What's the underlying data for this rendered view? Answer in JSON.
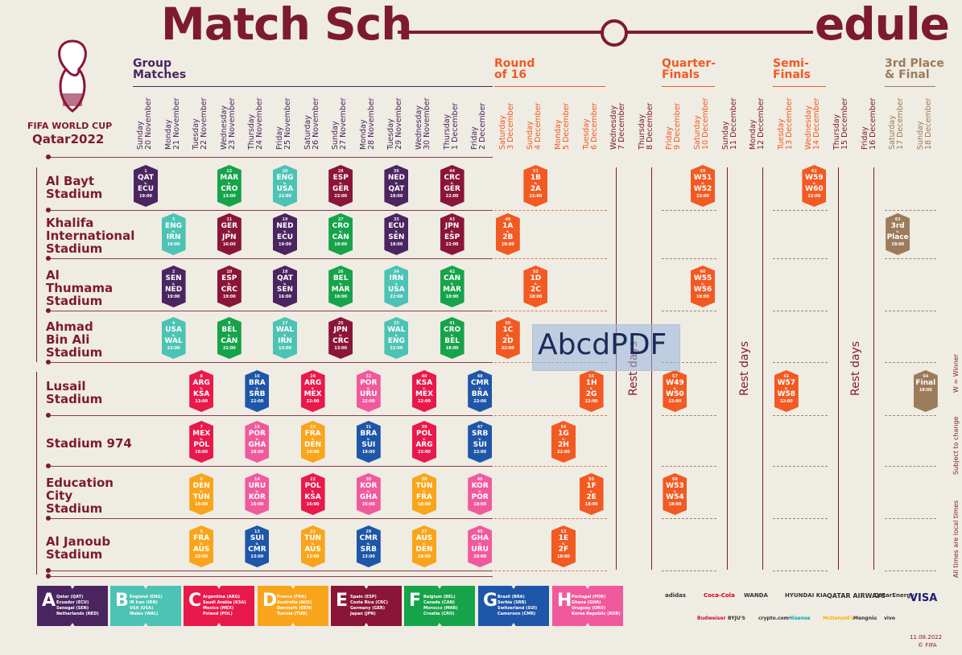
{
  "title": {
    "left": "Match Sch",
    "right": "edule"
  },
  "logo": {
    "line1": "FIFA WORLD CUP",
    "line2": "Qatar2022"
  },
  "stages": [
    {
      "id": "group",
      "label": "Group\nMatches",
      "color": "#4a2560"
    },
    {
      "id": "r16",
      "label": "Round\nof 16",
      "color": "#f15a22"
    },
    {
      "id": "qf",
      "label": "Quarter-\nFinals",
      "color": "#f15a22"
    },
    {
      "id": "sf",
      "label": "Semi-\nFinals",
      "color": "#f15a22"
    },
    {
      "id": "final",
      "label": "3rd Place\n& Final",
      "color": "#9c7b5a"
    }
  ],
  "dates": [
    {
      "d": "Sunday\n20 November",
      "c": "#4a2560"
    },
    {
      "d": "Monday\n21 November",
      "c": "#4a2560"
    },
    {
      "d": "Tuesday\n22 November",
      "c": "#4a2560"
    },
    {
      "d": "Wednesday\n23 November",
      "c": "#4a2560"
    },
    {
      "d": "Thursday\n24 November",
      "c": "#4a2560"
    },
    {
      "d": "Friday\n25 November",
      "c": "#4a2560"
    },
    {
      "d": "Saturday\n26 November",
      "c": "#4a2560"
    },
    {
      "d": "Sunday\n27 November",
      "c": "#4a2560"
    },
    {
      "d": "Monday\n28 November",
      "c": "#4a2560"
    },
    {
      "d": "Tuesday\n29 November",
      "c": "#4a2560"
    },
    {
      "d": "Wednesday\n30 November",
      "c": "#4a2560"
    },
    {
      "d": "Thursday\n1 December",
      "c": "#4a2560"
    },
    {
      "d": "Friday\n2 December",
      "c": "#4a2560"
    },
    {
      "d": "Saturday\n3 December",
      "c": "#f15a22"
    },
    {
      "d": "Sunday\n4 December",
      "c": "#f15a22"
    },
    {
      "d": "Monday\n5 December",
      "c": "#f15a22"
    },
    {
      "d": "Tuesday\n6 December",
      "c": "#f15a22"
    },
    {
      "d": "Wednesday\n7 December",
      "c": "#7d1a32"
    },
    {
      "d": "Thursday\n8 December",
      "c": "#7d1a32"
    },
    {
      "d": "Friday\n9 December",
      "c": "#f15a22"
    },
    {
      "d": "Saturday\n10 December",
      "c": "#f15a22"
    },
    {
      "d": "Sunday\n11 December",
      "c": "#7d1a32"
    },
    {
      "d": "Monday\n12 December",
      "c": "#7d1a32"
    },
    {
      "d": "Tuesday\n13 December",
      "c": "#f15a22"
    },
    {
      "d": "Wednesday\n14 December",
      "c": "#f15a22"
    },
    {
      "d": "Thursday\n15 December",
      "c": "#7d1a32"
    },
    {
      "d": "Friday\n16 December",
      "c": "#7d1a32"
    },
    {
      "d": "Saturday\n17 December",
      "c": "#9c7b5a"
    },
    {
      "d": "Sunday\n18 December",
      "c": "#9c7b5a"
    }
  ],
  "venues": [
    "Al Bayt\nStadium",
    "Khalifa\nInternational\nStadium",
    "Al\nThumama\nStadium",
    "Ahmad\nBin Ali\nStadium",
    "Lusail\nStadium",
    "Stadium 974",
    "Education\nCity\nStadium",
    "Al Janoub\nStadium"
  ],
  "colors": {
    "A": "#4a2560",
    "B": "#4cc3b4",
    "C": "#e8194b",
    "D": "#f9a51b",
    "E": "#8a1538",
    "F": "#16a34a",
    "G": "#1e56a8",
    "H": "#f05a9c",
    "KO": "#f15a22",
    "F3": "#9c7b5a"
  },
  "matches": [
    {
      "n": "1",
      "a": "QAT",
      "b": "ECU",
      "t": "19:00",
      "day": 0,
      "v": 0,
      "g": "A"
    },
    {
      "n": "12",
      "a": "MAR",
      "b": "CRO",
      "t": "13:00",
      "day": 3,
      "v": 0,
      "g": "F"
    },
    {
      "n": "20",
      "a": "ENG",
      "b": "USA",
      "t": "22:00",
      "day": 5,
      "v": 0,
      "g": "B"
    },
    {
      "n": "28",
      "a": "ESP",
      "b": "GER",
      "t": "22:00",
      "day": 7,
      "v": 0,
      "g": "E"
    },
    {
      "n": "36",
      "a": "NED",
      "b": "QAT",
      "t": "18:00",
      "day": 9,
      "v": 0,
      "g": "A"
    },
    {
      "n": "44",
      "a": "CRC",
      "b": "GER",
      "t": "22:00",
      "day": 11,
      "v": 0,
      "g": "E"
    },
    {
      "n": "51",
      "a": "1B",
      "b": "2A",
      "t": "22:00",
      "day": 14,
      "v": 0,
      "g": "KO"
    },
    {
      "n": "59",
      "a": "W51",
      "b": "W52",
      "t": "22:00",
      "day": 20,
      "v": 0,
      "g": "KO"
    },
    {
      "n": "62",
      "a": "W59",
      "b": "W60",
      "t": "22:00",
      "day": 24,
      "v": 0,
      "g": "KO"
    },
    {
      "n": "3",
      "a": "ENG",
      "b": "IRN",
      "t": "16:00",
      "day": 1,
      "v": 1,
      "g": "B"
    },
    {
      "n": "11",
      "a": "GER",
      "b": "JPN",
      "t": "16:00",
      "day": 3,
      "v": 1,
      "g": "E"
    },
    {
      "n": "19",
      "a": "NED",
      "b": "ECU",
      "t": "19:00",
      "day": 5,
      "v": 1,
      "g": "A"
    },
    {
      "n": "27",
      "a": "CRO",
      "b": "CAN",
      "t": "19:00",
      "day": 7,
      "v": 1,
      "g": "F"
    },
    {
      "n": "35",
      "a": "ECU",
      "b": "SEN",
      "t": "18:00",
      "day": 9,
      "v": 1,
      "g": "A"
    },
    {
      "n": "43",
      "a": "JPN",
      "b": "ESP",
      "t": "22:00",
      "day": 11,
      "v": 1,
      "g": "E"
    },
    {
      "n": "49",
      "a": "1A",
      "b": "2B",
      "t": "18:00",
      "day": 13,
      "v": 1,
      "g": "KO"
    },
    {
      "n": "63",
      "a": "3rd",
      "b": "Place",
      "t": "18:00",
      "day": 27,
      "v": 1,
      "g": "F3"
    },
    {
      "n": "2",
      "a": "SEN",
      "b": "NED",
      "t": "19:00",
      "day": 1,
      "v": 2,
      "g": "A"
    },
    {
      "n": "10",
      "a": "ESP",
      "b": "CRC",
      "t": "19:00",
      "day": 3,
      "v": 2,
      "g": "E"
    },
    {
      "n": "18",
      "a": "QAT",
      "b": "SEN",
      "t": "16:00",
      "day": 5,
      "v": 2,
      "g": "A"
    },
    {
      "n": "26",
      "a": "BEL",
      "b": "MAR",
      "t": "16:00",
      "day": 7,
      "v": 2,
      "g": "F"
    },
    {
      "n": "34",
      "a": "IRN",
      "b": "USA",
      "t": "22:00",
      "day": 9,
      "v": 2,
      "g": "B"
    },
    {
      "n": "42",
      "a": "CAN",
      "b": "MAR",
      "t": "18:00",
      "day": 11,
      "v": 2,
      "g": "F"
    },
    {
      "n": "52",
      "a": "1D",
      "b": "2C",
      "t": "18:00",
      "day": 14,
      "v": 2,
      "g": "KO"
    },
    {
      "n": "60",
      "a": "W55",
      "b": "W56",
      "t": "18:00",
      "day": 20,
      "v": 2,
      "g": "KO"
    },
    {
      "n": "4",
      "a": "USA",
      "b": "WAL",
      "t": "22:00",
      "day": 1,
      "v": 3,
      "g": "B"
    },
    {
      "n": "9",
      "a": "BEL",
      "b": "CAN",
      "t": "22:00",
      "day": 3,
      "v": 3,
      "g": "F"
    },
    {
      "n": "17",
      "a": "WAL",
      "b": "IRN",
      "t": "13:00",
      "day": 5,
      "v": 3,
      "g": "B"
    },
    {
      "n": "25",
      "a": "JPN",
      "b": "CRC",
      "t": "13:00",
      "day": 7,
      "v": 3,
      "g": "E"
    },
    {
      "n": "33",
      "a": "WAL",
      "b": "ENG",
      "t": "22:00",
      "day": 9,
      "v": 3,
      "g": "B"
    },
    {
      "n": "41",
      "a": "CRO",
      "b": "BEL",
      "t": "18:00",
      "day": 11,
      "v": 3,
      "g": "F"
    },
    {
      "n": "50",
      "a": "1C",
      "b": "2D",
      "t": "22:00",
      "day": 13,
      "v": 3,
      "g": "KO"
    },
    {
      "n": "8",
      "a": "ARG",
      "b": "KSA",
      "t": "13:00",
      "day": 2,
      "v": 4,
      "g": "C"
    },
    {
      "n": "16",
      "a": "BRA",
      "b": "SRB",
      "t": "22:00",
      "day": 4,
      "v": 4,
      "g": "G"
    },
    {
      "n": "24",
      "a": "ARG",
      "b": "MEX",
      "t": "22:00",
      "day": 6,
      "v": 4,
      "g": "C"
    },
    {
      "n": "32",
      "a": "POR",
      "b": "URU",
      "t": "22:00",
      "day": 8,
      "v": 4,
      "g": "H"
    },
    {
      "n": "40",
      "a": "KSA",
      "b": "MEX",
      "t": "22:00",
      "day": 10,
      "v": 4,
      "g": "C"
    },
    {
      "n": "48",
      "a": "CMR",
      "b": "BRA",
      "t": "22:00",
      "day": 12,
      "v": 4,
      "g": "G"
    },
    {
      "n": "56",
      "a": "1H",
      "b": "2G",
      "t": "22:00",
      "day": 16,
      "v": 4,
      "g": "KO"
    },
    {
      "n": "57",
      "a": "W49",
      "b": "W50",
      "t": "22:00",
      "day": 19,
      "v": 4,
      "g": "KO"
    },
    {
      "n": "61",
      "a": "W57",
      "b": "W58",
      "t": "22:00",
      "day": 23,
      "v": 4,
      "g": "KO"
    },
    {
      "n": "64",
      "a": "Final",
      "b": "",
      "t": "18:00",
      "day": 28,
      "v": 4,
      "g": "F3"
    },
    {
      "n": "7",
      "a": "MEX",
      "b": "POL",
      "t": "19:00",
      "day": 2,
      "v": 5,
      "g": "C"
    },
    {
      "n": "15",
      "a": "POR",
      "b": "GHA",
      "t": "19:00",
      "day": 4,
      "v": 5,
      "g": "H"
    },
    {
      "n": "23",
      "a": "FRA",
      "b": "DEN",
      "t": "19:00",
      "day": 6,
      "v": 5,
      "g": "D"
    },
    {
      "n": "31",
      "a": "BRA",
      "b": "SUI",
      "t": "19:00",
      "day": 8,
      "v": 5,
      "g": "G"
    },
    {
      "n": "39",
      "a": "POL",
      "b": "ARG",
      "t": "22:00",
      "day": 10,
      "v": 5,
      "g": "C"
    },
    {
      "n": "47",
      "a": "SRB",
      "b": "SUI",
      "t": "22:00",
      "day": 12,
      "v": 5,
      "g": "G"
    },
    {
      "n": "54",
      "a": "1G",
      "b": "2H",
      "t": "22:00",
      "day": 15,
      "v": 5,
      "g": "KO"
    },
    {
      "n": "6",
      "a": "DEN",
      "b": "TUN",
      "t": "16:00",
      "day": 2,
      "v": 6,
      "g": "D"
    },
    {
      "n": "14",
      "a": "URU",
      "b": "KOR",
      "t": "16:00",
      "day": 4,
      "v": 6,
      "g": "H"
    },
    {
      "n": "22",
      "a": "POL",
      "b": "KSA",
      "t": "16:00",
      "day": 6,
      "v": 6,
      "g": "C"
    },
    {
      "n": "30",
      "a": "KOR",
      "b": "GHA",
      "t": "16:00",
      "day": 8,
      "v": 6,
      "g": "H"
    },
    {
      "n": "38",
      "a": "TUN",
      "b": "FRA",
      "t": "18:00",
      "day": 10,
      "v": 6,
      "g": "D"
    },
    {
      "n": "46",
      "a": "KOR",
      "b": "POR",
      "t": "18:00",
      "day": 12,
      "v": 6,
      "g": "H"
    },
    {
      "n": "55",
      "a": "1F",
      "b": "2E",
      "t": "18:00",
      "day": 16,
      "v": 6,
      "g": "KO"
    },
    {
      "n": "58",
      "a": "W53",
      "b": "W54",
      "t": "18:00",
      "day": 19,
      "v": 6,
      "g": "KO"
    },
    {
      "n": "5",
      "a": "FRA",
      "b": "AUS",
      "t": "22:00",
      "day": 2,
      "v": 7,
      "g": "D"
    },
    {
      "n": "13",
      "a": "SUI",
      "b": "CMR",
      "t": "13:00",
      "day": 4,
      "v": 7,
      "g": "G"
    },
    {
      "n": "21",
      "a": "TUN",
      "b": "AUS",
      "t": "13:00",
      "day": 6,
      "v": 7,
      "g": "D"
    },
    {
      "n": "29",
      "a": "CMR",
      "b": "SRB",
      "t": "13:00",
      "day": 8,
      "v": 7,
      "g": "G"
    },
    {
      "n": "37",
      "a": "AUS",
      "b": "DEN",
      "t": "18:00",
      "day": 10,
      "v": 7,
      "g": "D"
    },
    {
      "n": "45",
      "a": "GHA",
      "b": "URU",
      "t": "18:00",
      "day": 12,
      "v": 7,
      "g": "H"
    },
    {
      "n": "53",
      "a": "1E",
      "b": "2F",
      "t": "18:00",
      "day": 15,
      "v": 7,
      "g": "KO"
    }
  ],
  "rest": [
    {
      "label": "Rest days",
      "day": 17.5
    },
    {
      "label": "Rest days",
      "day": 21.5
    },
    {
      "label": "Rest days",
      "day": 25.5
    }
  ],
  "legend": [
    {
      "L": "A",
      "teams": "Qatar (QAT)\nEcuador (ECU)\nSenegal (SEN)\nNetherlands (NED)",
      "c": "#4a2560"
    },
    {
      "L": "B",
      "teams": "England (ENG)\nIR Iran (IRN)\nUSA (USA)\nWales (WAL)",
      "c": "#4cc3b4"
    },
    {
      "L": "C",
      "teams": "Argentina (ARG)\nSaudi Arabia (KSA)\nMexico (MEX)\nPoland (POL)",
      "c": "#e8194b"
    },
    {
      "L": "D",
      "teams": "France (FRA)\nAustralia (AUS)\nDenmark (DEN)\nTunisia (TUN)",
      "c": "#f9a51b"
    },
    {
      "L": "E",
      "teams": "Spain (ESP)\nCosta Rica (CRC)\nGermany (GER)\nJapan (JPN)",
      "c": "#8a1538"
    },
    {
      "L": "F",
      "teams": "Belgium (BEL)\nCanada (CAN)\nMorocco (MAR)\nCroatia (CRO)",
      "c": "#16a34a"
    },
    {
      "L": "G",
      "teams": "Brazil (BRA)\nSerbia (SRB)\nSwitzerland (SUI)\nCameroon (CMR)",
      "c": "#1e56a8"
    },
    {
      "L": "H",
      "teams": "Portugal (POR)\nGhana (GHA)\nUruguay (URU)\nKorea Republic (KOR)",
      "c": "#f05a9c"
    }
  ],
  "sponsors_row1": [
    "adidas",
    "Coca-Cola",
    "WANDA",
    "HYUNDAI KIA",
    "QATAR AIRWAYS",
    "QatarEnergy",
    "VISA"
  ],
  "sponsors_row2": [
    "Budweiser",
    "BYJU'S",
    "crypto.com",
    "Hisense",
    "McDonald's",
    "Mengniu",
    "vivo"
  ],
  "watermark": "AbcdPDF",
  "side_notes": [
    "W = Winner",
    "Subject to change",
    "All times are local times"
  ],
  "footer": {
    "date": "11.08.2022",
    "copy": "© FIFA"
  }
}
